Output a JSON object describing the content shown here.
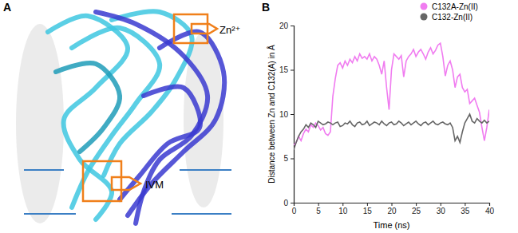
{
  "figure": {
    "panel_a": {
      "label": "A",
      "zinc_label": "Zn²⁺",
      "ivm_label": "IVM"
    }
  },
  "chart_data": {
    "type": "line",
    "title": "B",
    "x_label": "Time (ns)",
    "y_label": "Distance between Zn and C132(A) in Å",
    "x": [
      0,
      0.5,
      1,
      1.5,
      2,
      2.5,
      3,
      3.5,
      4,
      4.5,
      5,
      5.5,
      6,
      6.5,
      7,
      7.5,
      8,
      8.5,
      9,
      9.5,
      10,
      10.5,
      11,
      11.5,
      12,
      12.5,
      13,
      13.5,
      14,
      14.5,
      15,
      15.5,
      16,
      16.5,
      17,
      17.5,
      18,
      18.5,
      19,
      19.5,
      20,
      20.5,
      21,
      21.5,
      22,
      22.5,
      23,
      23.5,
      24,
      24.5,
      25,
      25.5,
      26,
      26.5,
      27,
      27.5,
      28,
      28.5,
      29,
      29.5,
      30,
      30.5,
      31,
      31.5,
      32,
      32.5,
      33,
      33.5,
      34,
      34.5,
      35,
      35.5,
      36,
      36.5,
      37,
      37.5,
      38,
      38.5,
      39,
      39.5,
      40
    ],
    "series": [
      {
        "name": "C132A-Zn(II)",
        "color": "#f07cf0",
        "marker": "circle",
        "values": [
          6.5,
          6.8,
          7.5,
          7,
          7.8,
          8.3,
          8,
          8.8,
          8.5,
          9,
          8.7,
          8.2,
          8.5,
          7.8,
          7.6,
          8,
          12,
          14,
          15.5,
          15.8,
          15.2,
          16,
          15.5,
          16.2,
          15.8,
          16.5,
          16,
          16.8,
          16.3,
          16.5,
          16.2,
          16.8,
          16,
          16.5,
          16.2,
          15.5,
          14.5,
          16,
          13,
          10.5,
          15,
          16.8,
          16.5,
          16.2,
          16.6,
          14.2,
          16,
          16.5,
          16.8,
          17.3,
          16.5,
          17,
          17.3,
          16.8,
          16.2,
          17,
          17.5,
          16.8,
          17.2,
          17.8,
          18,
          16.5,
          14.3,
          15.5,
          16,
          15,
          13,
          14.2,
          14.5,
          13,
          12.5,
          12.8,
          11.2,
          11.5,
          11.8,
          11,
          10.2,
          8.5,
          7,
          8.5,
          10.5
        ]
      },
      {
        "name": "C132-Zn(II)",
        "color": "#666666",
        "marker": "circle",
        "values": [
          6,
          6.8,
          7.5,
          8,
          8.3,
          8.8,
          8.5,
          9,
          8.8,
          8.5,
          9.2,
          9,
          8.8,
          8.9,
          9.1,
          9,
          8.8,
          9,
          9.1,
          8.6,
          8.7,
          9,
          8.9,
          9.2,
          8.8,
          8.6,
          9,
          9.1,
          8.8,
          8.9,
          9.2,
          8.7,
          8.9,
          9.1,
          9,
          8.8,
          9.2,
          8.9,
          8.7,
          9,
          9.1,
          8.8,
          8.9,
          9.2,
          9,
          8.7,
          8.9,
          9.1,
          8.8,
          9,
          9.2,
          8.9,
          8.7,
          9,
          9.1,
          8.8,
          9,
          9.2,
          8.9,
          8.8,
          9,
          9.1,
          8.9,
          8.8,
          9,
          8.5,
          7,
          7.5,
          6.8,
          8,
          9,
          9.5,
          10,
          9.2,
          9,
          9.5,
          9.2,
          9,
          9.3,
          9,
          9.2
        ]
      }
    ],
    "xlim": [
      0,
      40
    ],
    "xticks": [
      0,
      5,
      10,
      15,
      20,
      25,
      30,
      35,
      40
    ],
    "ylim": [
      0,
      20
    ],
    "yticks": [
      0,
      5,
      10,
      15,
      20
    ],
    "legend": "top-right",
    "grid": false
  }
}
